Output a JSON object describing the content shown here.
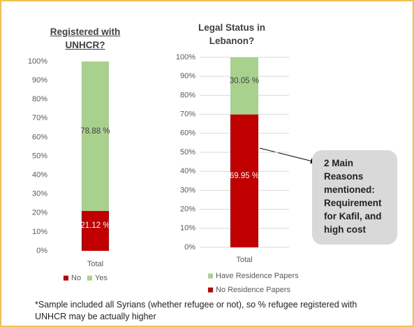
{
  "chart_data": [
    {
      "type": "stacked_bar",
      "title": "Registered with UNHCR?",
      "categories": [
        "Total"
      ],
      "series": [
        {
          "name": "No",
          "color": "#c00000",
          "values": [
            21.12
          ],
          "value_labels": [
            "21.12 %"
          ]
        },
        {
          "name": "Yes",
          "color": "#a9d18e",
          "values": [
            78.88
          ],
          "value_labels": [
            "78.88 %"
          ]
        }
      ],
      "ylim": [
        0,
        100
      ],
      "yticks": [
        {
          "value": 0,
          "label": "0%"
        },
        {
          "value": 10,
          "label": "10%"
        },
        {
          "value": 20,
          "label": "20%"
        },
        {
          "value": 30,
          "label": "30%"
        },
        {
          "value": 40,
          "label": "40%"
        },
        {
          "value": 50,
          "label": "50%"
        },
        {
          "value": 60,
          "label": "60%"
        },
        {
          "value": 70,
          "label": "70%"
        },
        {
          "value": 80,
          "label": "80%"
        },
        {
          "value": 90,
          "label": "90%"
        },
        {
          "value": 100,
          "label": "100%"
        }
      ],
      "grid": false,
      "legend": "bottom"
    },
    {
      "type": "stacked_bar",
      "title": "Legal Status in Lebanon?",
      "categories": [
        "Total"
      ],
      "series": [
        {
          "name": "No Residence Papers",
          "color": "#c00000",
          "values": [
            69.95
          ],
          "value_labels": [
            "69.95 %"
          ]
        },
        {
          "name": "Have Residence Papers",
          "color": "#a9d18e",
          "values": [
            30.05
          ],
          "value_labels": [
            "30.05 %"
          ]
        }
      ],
      "ylim": [
        0,
        100
      ],
      "yticks": [
        {
          "value": 0,
          "label": "0%"
        },
        {
          "value": 10,
          "label": "10%"
        },
        {
          "value": 20,
          "label": "20%"
        },
        {
          "value": 30,
          "label": "30%"
        },
        {
          "value": 40,
          "label": "40%"
        },
        {
          "value": 50,
          "label": "50%"
        },
        {
          "value": 60,
          "label": "60%"
        },
        {
          "value": 70,
          "label": "70%"
        },
        {
          "value": 80,
          "label": "80%"
        },
        {
          "value": 90,
          "label": "90%"
        },
        {
          "value": 100,
          "label": "100%"
        }
      ],
      "grid": true,
      "legend": "bottom",
      "annotation": "2 Main Reasons mentioned: Requirement for Kafil, and high cost"
    }
  ],
  "footnote": "*Sample included all Syrians (whether refugee or not), so % refugee registered with UNHCR may be actually higher"
}
